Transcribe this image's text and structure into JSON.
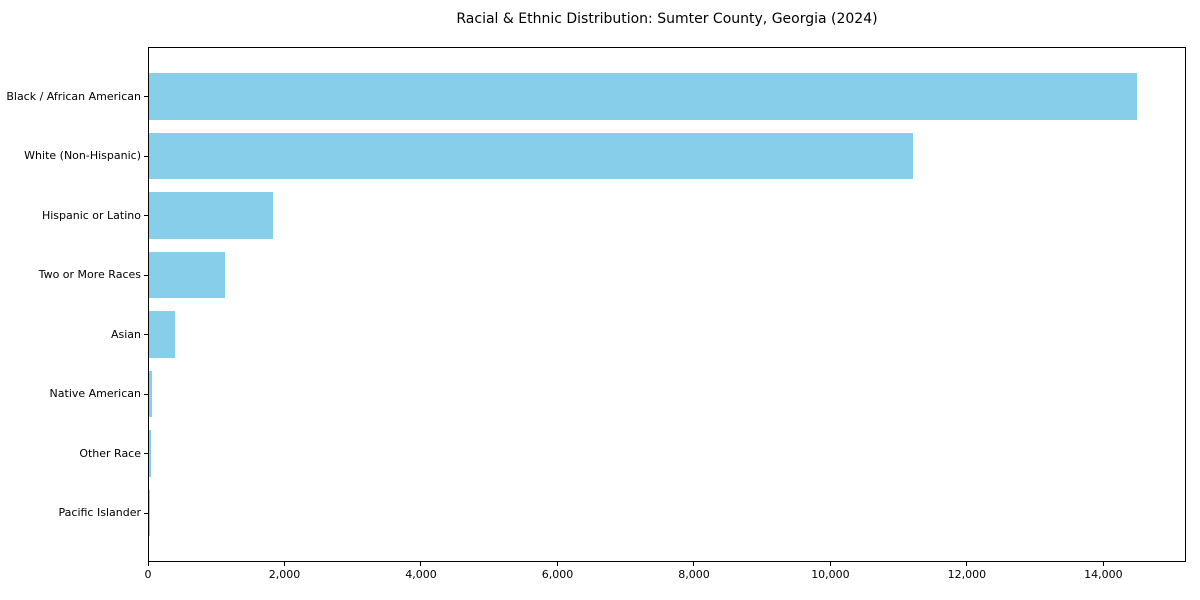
{
  "chart_data": {
    "type": "bar",
    "orientation": "horizontal",
    "title": "Racial & Ethnic Distribution: Sumter County, Georgia (2024)",
    "categories": [
      "Black / African American",
      "White (Non-Hispanic)",
      "Hispanic or Latino",
      "Two or More Races",
      "Asian",
      "Native American",
      "Other Race",
      "Pacific Islander"
    ],
    "values": [
      14480,
      11190,
      1810,
      1120,
      375,
      45,
      30,
      8
    ],
    "xlabel": "",
    "ylabel": "",
    "xlim": [
      0,
      15210
    ],
    "xticks": [
      0,
      2000,
      4000,
      6000,
      8000,
      10000,
      12000,
      14000
    ],
    "xtick_format": "thousands-comma",
    "bar_color": "#87CEEB",
    "background_color": "#ffffff",
    "spine_color": "#000000",
    "grid": false,
    "legend": null
  }
}
